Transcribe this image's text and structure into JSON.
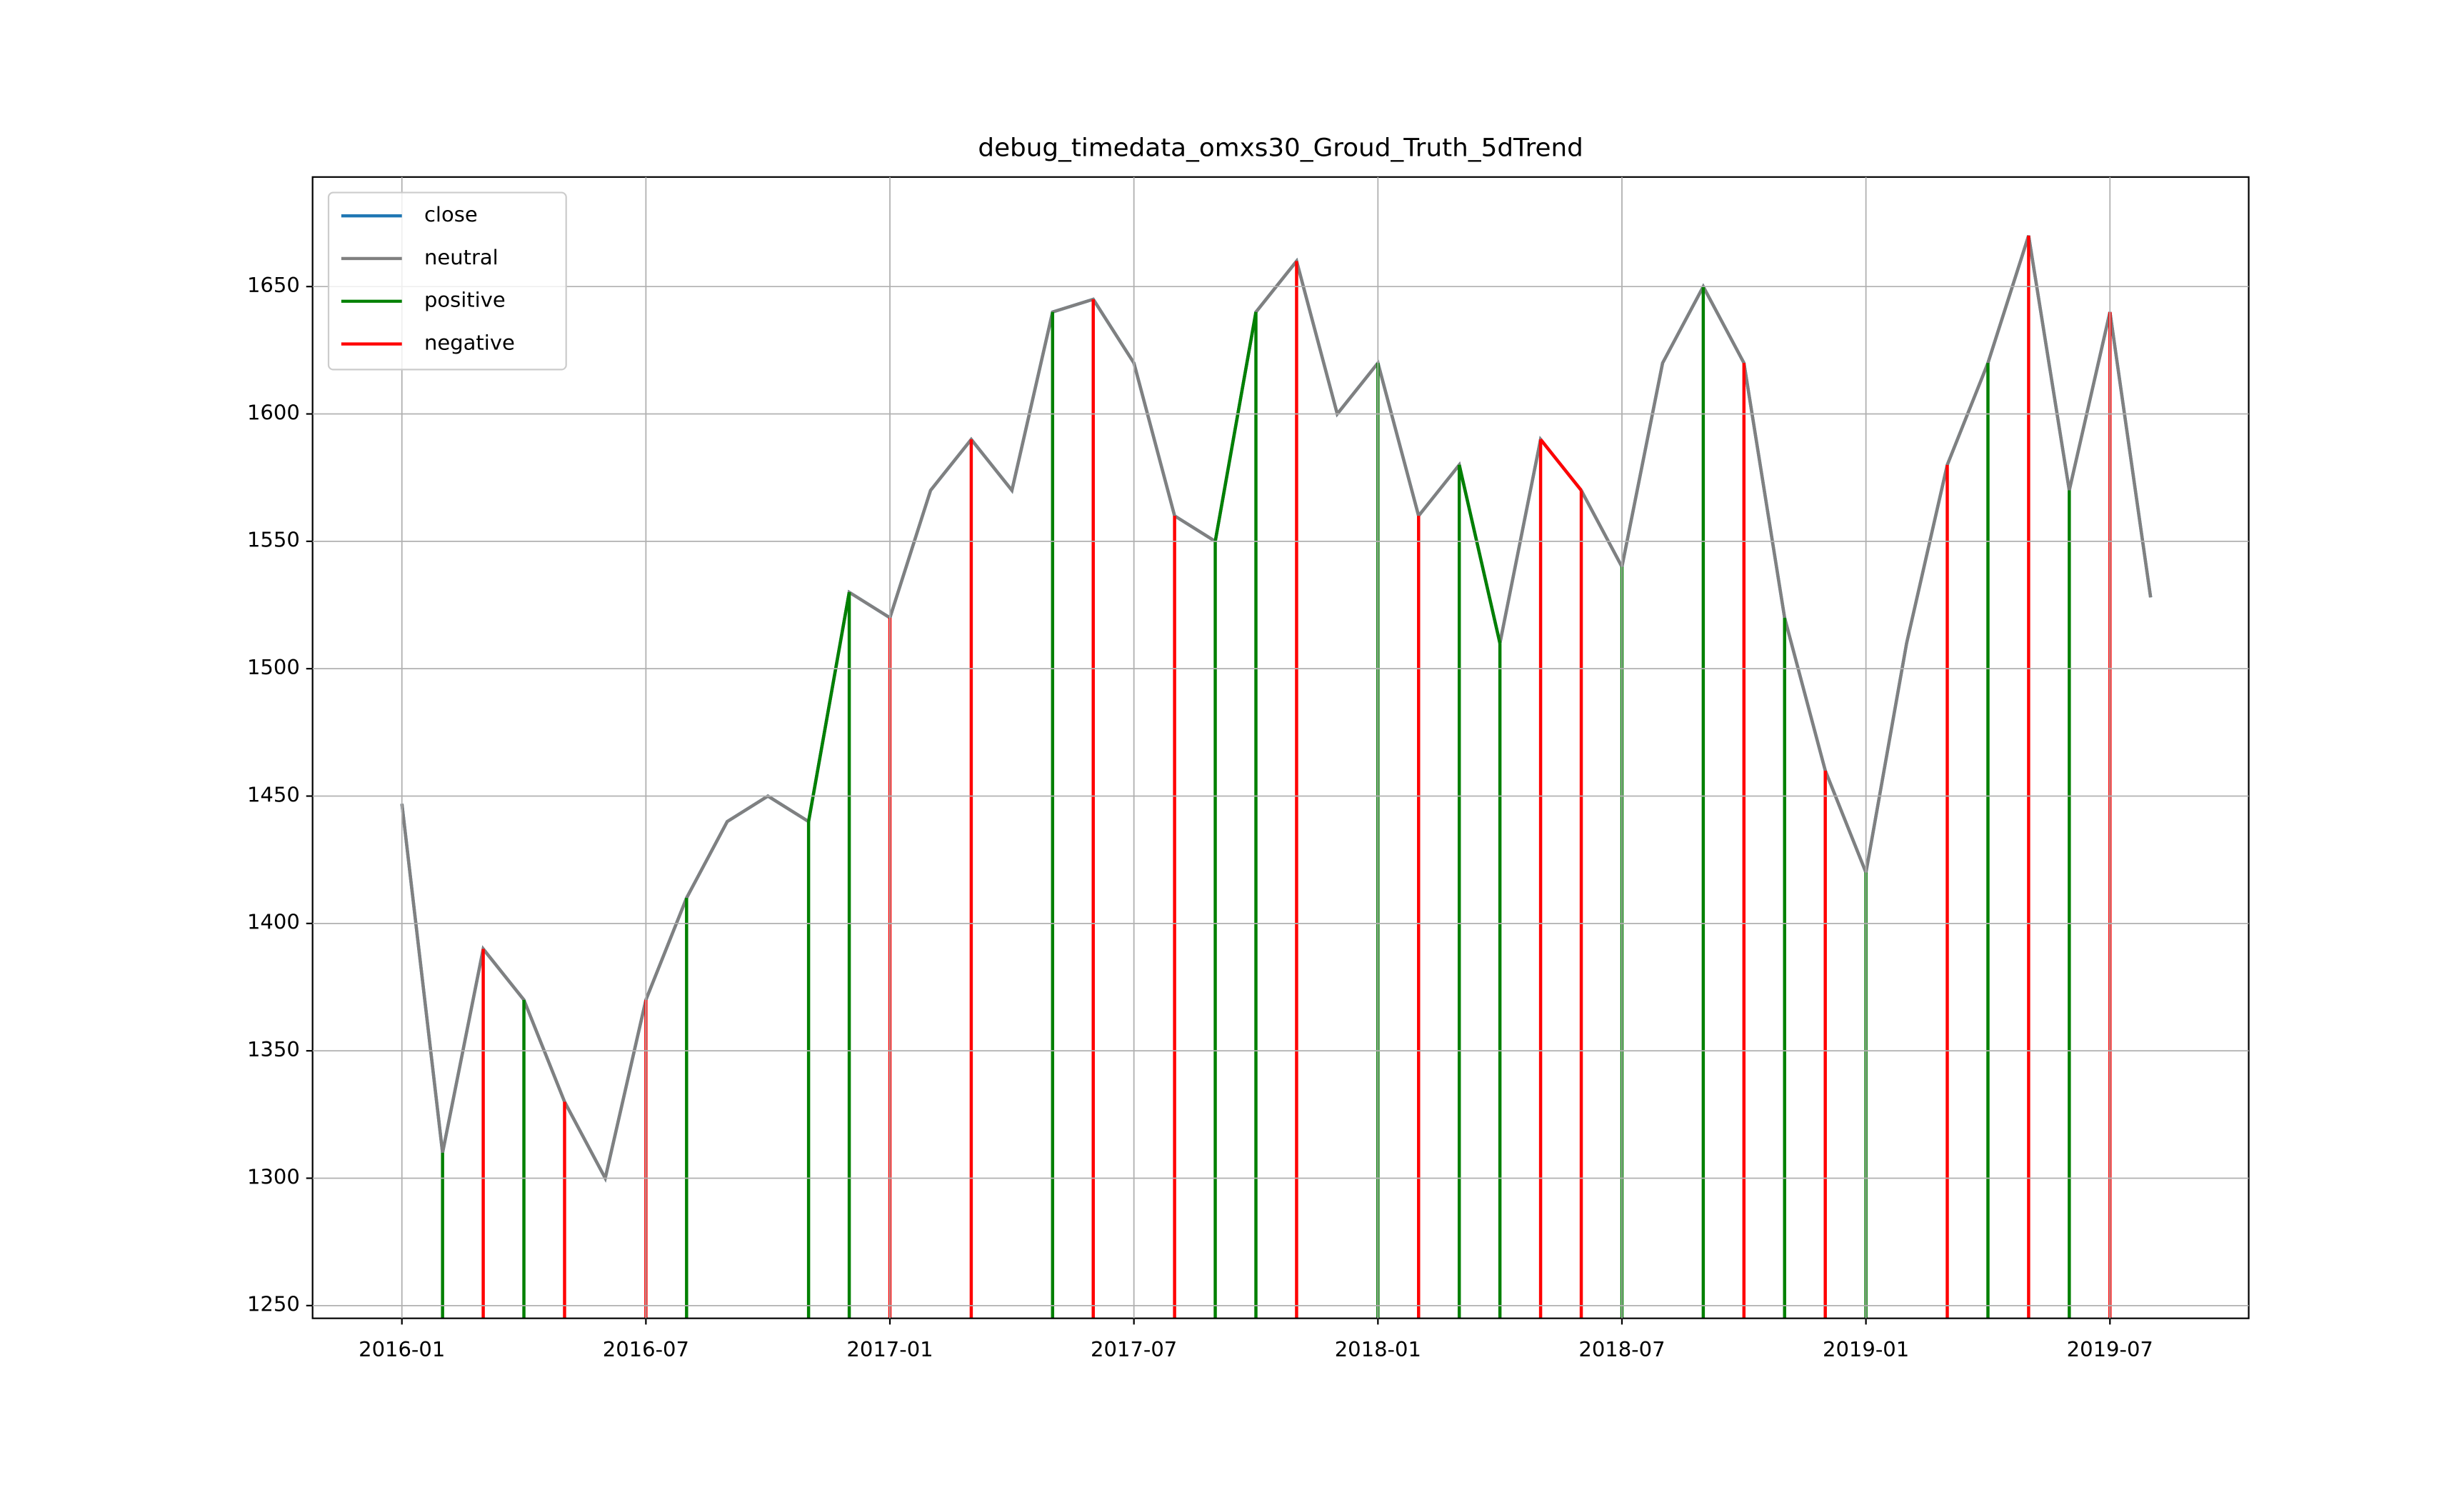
{
  "chart_data": {
    "type": "line",
    "title": "debug_timedata_omxs30_Groud_Truth_5dTrend",
    "x": [
      "2016-01",
      "2016-02",
      "2016-03",
      "2016-04",
      "2016-05",
      "2016-06",
      "2016-07",
      "2016-08",
      "2016-09",
      "2016-10",
      "2016-11",
      "2016-12",
      "2017-01",
      "2017-02",
      "2017-03",
      "2017-04",
      "2017-05",
      "2017-06",
      "2017-07",
      "2017-08",
      "2017-09",
      "2017-10",
      "2017-11",
      "2017-12",
      "2018-01",
      "2018-02",
      "2018-03",
      "2018-04",
      "2018-05",
      "2018-06",
      "2018-07",
      "2018-08",
      "2018-09",
      "2018-10",
      "2018-11",
      "2018-12",
      "2019-01",
      "2019-02",
      "2019-03",
      "2019-04",
      "2019-05",
      "2019-06",
      "2019-07",
      "2019-08"
    ],
    "series": [
      {
        "name": "close",
        "color": "#1f77b4",
        "values": [
          1447,
          1310,
          1390,
          1370,
          1330,
          1300,
          1370,
          1410,
          1440,
          1450,
          1440,
          1530,
          1520,
          1570,
          1590,
          1570,
          1640,
          1645,
          1620,
          1560,
          1550,
          1640,
          1660,
          1600,
          1620,
          1560,
          1580,
          1510,
          1590,
          1570,
          1540,
          1620,
          1650,
          1620,
          1520,
          1460,
          1420,
          1510,
          1580,
          1620,
          1670,
          1570,
          1640,
          1528
        ]
      },
      {
        "name": "neutral",
        "color": "#808080",
        "values": [
          1447,
          1310,
          1390,
          1370,
          1330,
          1300,
          1370,
          1410,
          1440,
          1450,
          1440,
          1530,
          1520,
          1570,
          1590,
          1570,
          1640,
          1645,
          1620,
          1560,
          1550,
          1640,
          1660,
          1600,
          1620,
          1560,
          1580,
          1510,
          1590,
          1570,
          1540,
          1620,
          1650,
          1620,
          1520,
          1460,
          1420,
          1510,
          1580,
          1620,
          1670,
          1570,
          1640,
          1528
        ]
      },
      {
        "name": "positive",
        "color": "#008000",
        "values": [
          null,
          1310,
          null,
          1370,
          null,
          null,
          null,
          1410,
          null,
          null,
          1440,
          1530,
          null,
          null,
          null,
          null,
          1640,
          null,
          null,
          null,
          1550,
          1640,
          null,
          null,
          1620,
          null,
          1580,
          1510,
          null,
          null,
          1540,
          null,
          1650,
          null,
          1520,
          null,
          1420,
          null,
          null,
          1620,
          null,
          1570,
          null,
          null
        ]
      },
      {
        "name": "negative",
        "color": "#ff0000",
        "values": [
          null,
          null,
          1390,
          null,
          1330,
          null,
          1370,
          null,
          null,
          null,
          null,
          null,
          1520,
          null,
          1590,
          null,
          null,
          1645,
          null,
          1560,
          null,
          null,
          1660,
          null,
          null,
          1560,
          null,
          null,
          1590,
          1570,
          null,
          null,
          null,
          1620,
          null,
          1460,
          null,
          null,
          1580,
          null,
          1670,
          null,
          1640,
          null
        ]
      }
    ],
    "ylim": [
      1245,
      1693
    ],
    "yticks": [
      1250,
      1300,
      1350,
      1400,
      1450,
      1500,
      1550,
      1600,
      1650
    ],
    "xticks": [
      "2016-01",
      "2016-07",
      "2017-01",
      "2017-07",
      "2018-01",
      "2018-07",
      "2019-01",
      "2019-07"
    ],
    "grid": true,
    "legend": "upper left"
  }
}
